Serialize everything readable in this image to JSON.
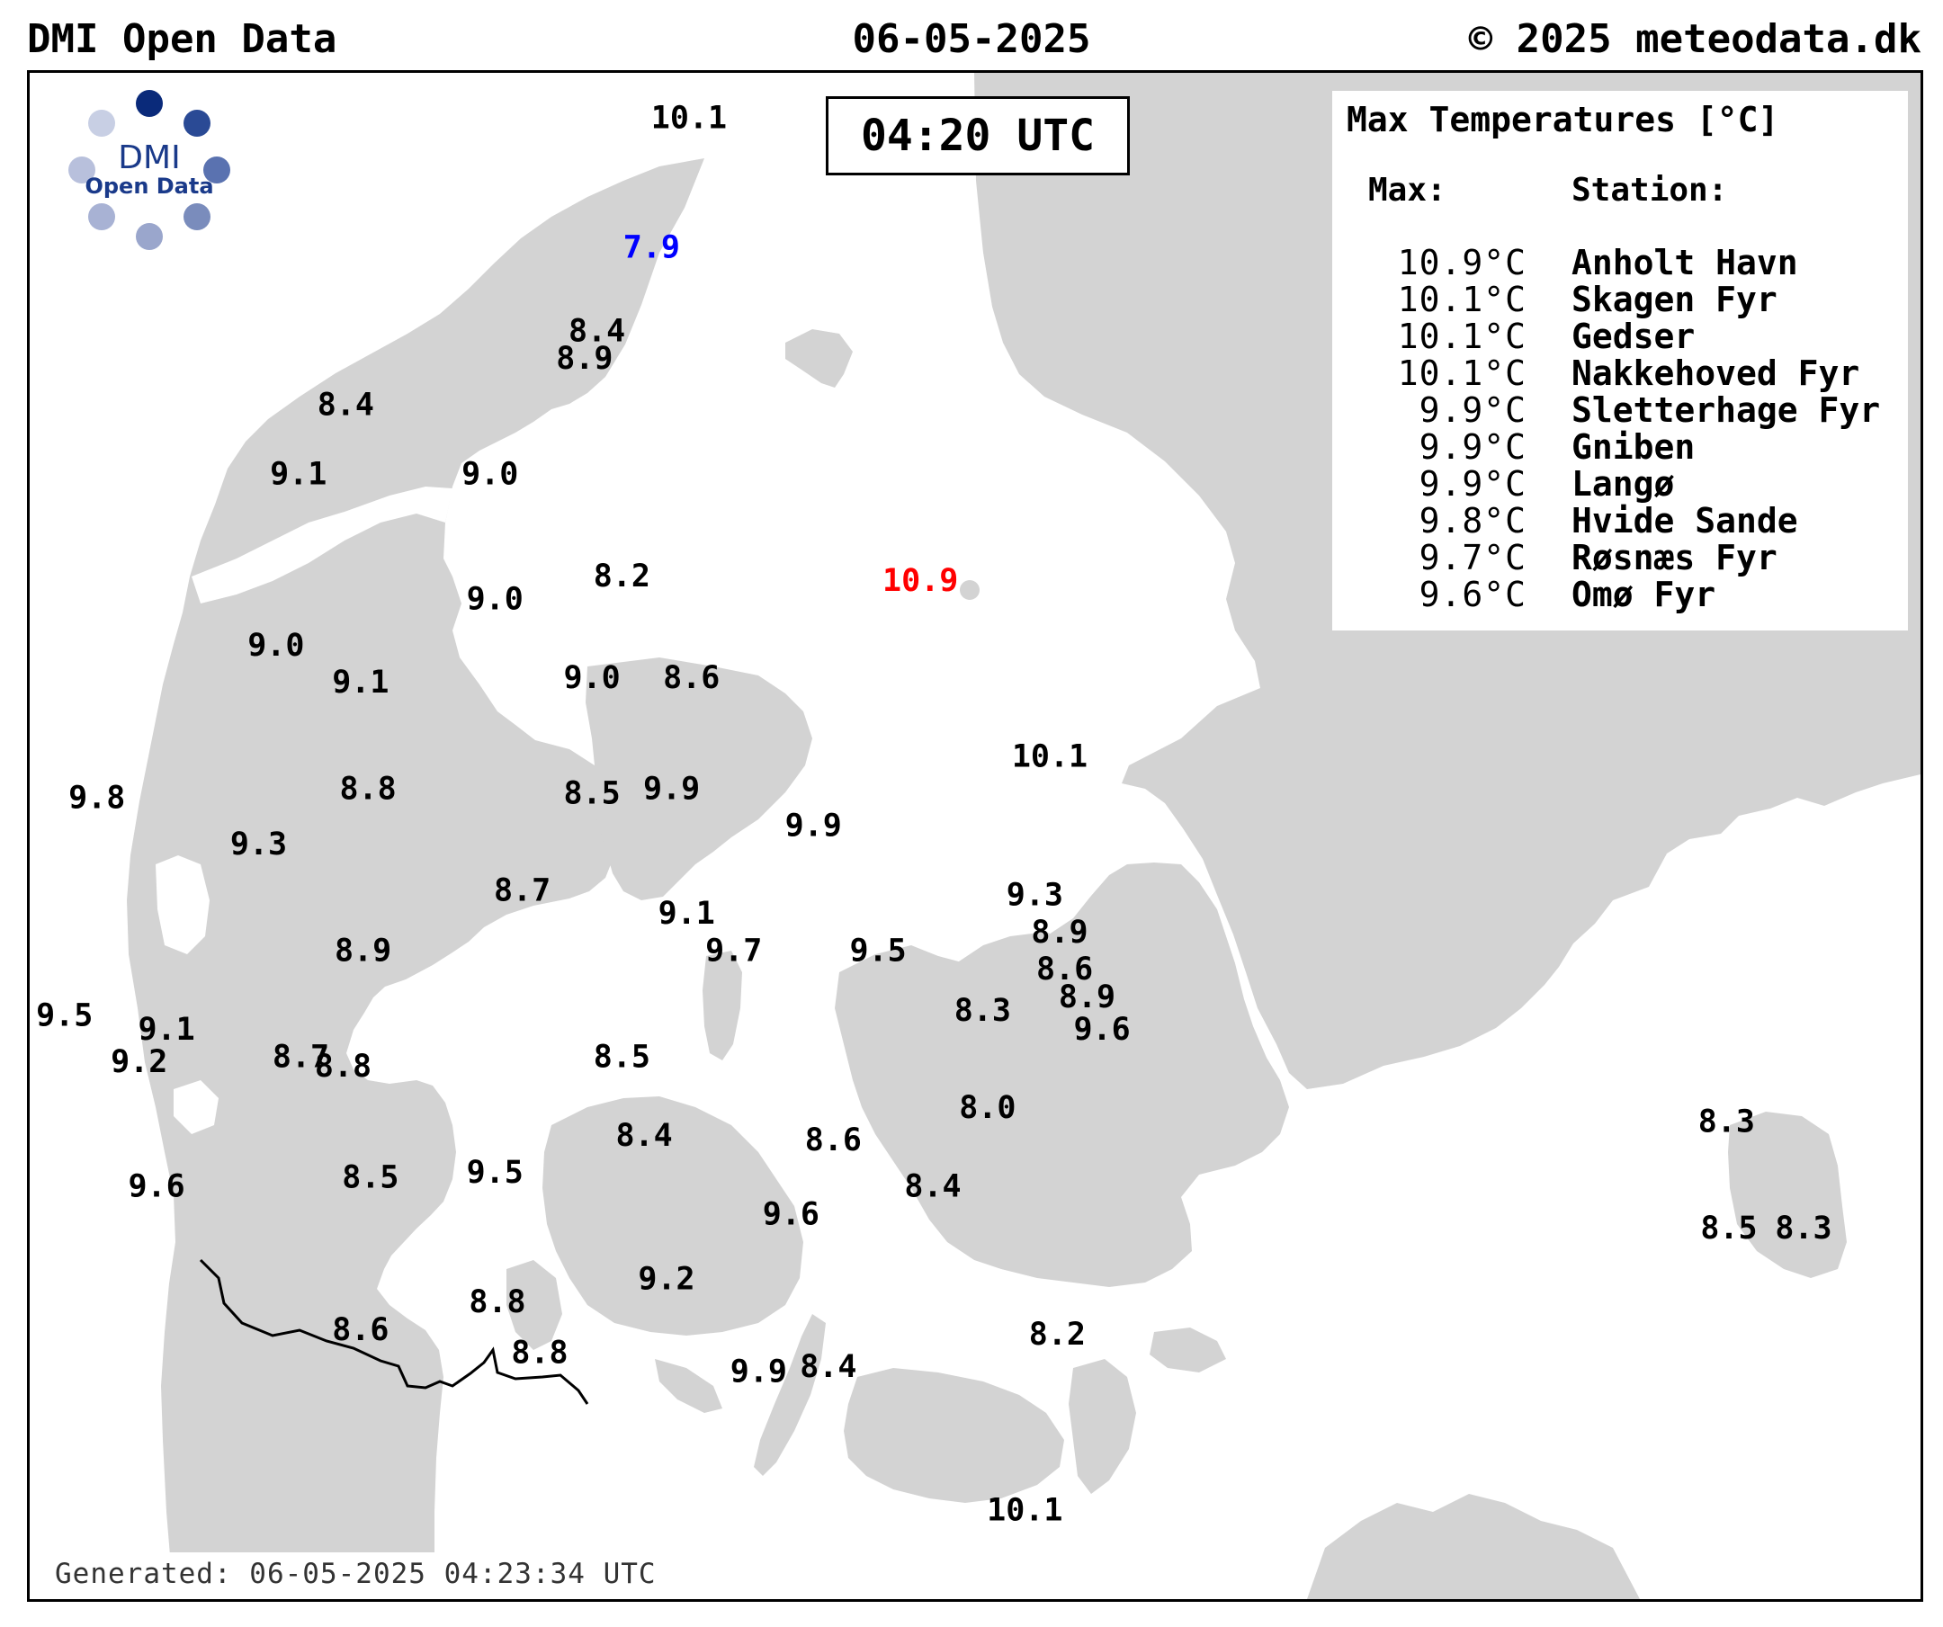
{
  "header": {
    "left": "DMI Open Data",
    "center": "06-05-2025",
    "right": "© 2025 meteodata.dk"
  },
  "time_label": "04:20 UTC",
  "logo": {
    "text_top": "DMI",
    "text_bottom": "Open Data",
    "color": "#1a3a8a"
  },
  "legend": {
    "title": "Max Temperatures [°C]",
    "col_max": "Max:",
    "col_station": "Station:",
    "rows": [
      {
        "max": "10.9°C",
        "station": "Anholt Havn"
      },
      {
        "max": "10.1°C",
        "station": "Skagen Fyr"
      },
      {
        "max": "10.1°C",
        "station": "Gedser"
      },
      {
        "max": "10.1°C",
        "station": "Nakkehoved Fyr"
      },
      {
        "max": "9.9°C",
        "station": "Sletterhage Fyr"
      },
      {
        "max": "9.9°C",
        "station": "Gniben"
      },
      {
        "max": "9.9°C",
        "station": "Langø"
      },
      {
        "max": "9.8°C",
        "station": "Hvide Sande"
      },
      {
        "max": "9.7°C",
        "station": "Røsnæs Fyr"
      },
      {
        "max": "9.6°C",
        "station": "Omø Fyr"
      }
    ]
  },
  "generated": "Generated: 06-05-2025 04:23:34 UTC",
  "colors": {
    "land": "#d3d3d3",
    "sea": "#ffffff",
    "normal": "#000000",
    "max_highlight": "#ff0000",
    "min_highlight": "#0000ff"
  },
  "station_values": [
    {
      "v": "10.1",
      "lon": 10.6,
      "lat": 57.73,
      "c": "normal"
    },
    {
      "v": "7.9",
      "lon": 10.45,
      "lat": 57.45,
      "c": "min"
    },
    {
      "v": "8.4",
      "lon": 10.23,
      "lat": 57.27,
      "c": "normal"
    },
    {
      "v": "8.9",
      "lon": 10.18,
      "lat": 57.21,
      "c": "normal"
    },
    {
      "v": "8.4",
      "lon": 9.22,
      "lat": 57.11,
      "c": "normal"
    },
    {
      "v": "9.1",
      "lon": 9.03,
      "lat": 56.96,
      "c": "normal"
    },
    {
      "v": "9.0",
      "lon": 9.8,
      "lat": 56.96,
      "c": "normal"
    },
    {
      "v": "10.9",
      "lon": 11.53,
      "lat": 56.73,
      "c": "max"
    },
    {
      "v": "8.2",
      "lon": 10.33,
      "lat": 56.74,
      "c": "normal"
    },
    {
      "v": "9.0",
      "lon": 9.82,
      "lat": 56.69,
      "c": "normal"
    },
    {
      "v": "9.0",
      "lon": 8.94,
      "lat": 56.59,
      "c": "normal"
    },
    {
      "v": "9.1",
      "lon": 9.28,
      "lat": 56.51,
      "c": "normal"
    },
    {
      "v": "9.0",
      "lon": 10.21,
      "lat": 56.52,
      "c": "normal"
    },
    {
      "v": "8.6",
      "lon": 10.61,
      "lat": 56.52,
      "c": "normal"
    },
    {
      "v": "10.1",
      "lon": 12.05,
      "lat": 56.35,
      "c": "normal"
    },
    {
      "v": "9.8",
      "lon": 8.22,
      "lat": 56.26,
      "c": "normal"
    },
    {
      "v": "8.8",
      "lon": 9.31,
      "lat": 56.28,
      "c": "normal"
    },
    {
      "v": "8.5",
      "lon": 10.21,
      "lat": 56.27,
      "c": "normal"
    },
    {
      "v": "9.9",
      "lon": 10.53,
      "lat": 56.28,
      "c": "normal"
    },
    {
      "v": "9.9",
      "lon": 11.1,
      "lat": 56.2,
      "c": "normal"
    },
    {
      "v": "9.3",
      "lon": 8.87,
      "lat": 56.16,
      "c": "normal"
    },
    {
      "v": "9.3",
      "lon": 11.99,
      "lat": 56.05,
      "c": "normal"
    },
    {
      "v": "8.7",
      "lon": 9.93,
      "lat": 56.06,
      "c": "normal"
    },
    {
      "v": "9.1",
      "lon": 10.59,
      "lat": 56.01,
      "c": "normal"
    },
    {
      "v": "8.9",
      "lon": 12.09,
      "lat": 55.97,
      "c": "normal"
    },
    {
      "v": "9.7",
      "lon": 10.78,
      "lat": 55.93,
      "c": "normal"
    },
    {
      "v": "9.5",
      "lon": 11.36,
      "lat": 55.93,
      "c": "normal"
    },
    {
      "v": "8.9",
      "lon": 9.29,
      "lat": 55.93,
      "c": "normal"
    },
    {
      "v": "8.6",
      "lon": 12.11,
      "lat": 55.89,
      "c": "normal"
    },
    {
      "v": "8.9",
      "lon": 12.2,
      "lat": 55.83,
      "c": "normal"
    },
    {
      "v": "8.3",
      "lon": 11.78,
      "lat": 55.8,
      "c": "normal"
    },
    {
      "v": "9.6",
      "lon": 12.26,
      "lat": 55.76,
      "c": "normal"
    },
    {
      "v": "9.5",
      "lon": 8.09,
      "lat": 55.79,
      "c": "normal"
    },
    {
      "v": "9.1",
      "lon": 8.5,
      "lat": 55.76,
      "c": "normal"
    },
    {
      "v": "9.2",
      "lon": 8.39,
      "lat": 55.69,
      "c": "normal"
    },
    {
      "v": "8.7",
      "lon": 9.04,
      "lat": 55.7,
      "c": "normal"
    },
    {
      "v": "8.8",
      "lon": 9.21,
      "lat": 55.68,
      "c": "normal"
    },
    {
      "v": "8.5",
      "lon": 10.33,
      "lat": 55.7,
      "c": "normal"
    },
    {
      "v": "8.0",
      "lon": 11.8,
      "lat": 55.59,
      "c": "normal"
    },
    {
      "v": "8.3",
      "lon": 14.77,
      "lat": 55.56,
      "c": "normal"
    },
    {
      "v": "8.4",
      "lon": 10.42,
      "lat": 55.53,
      "c": "normal"
    },
    {
      "v": "8.6",
      "lon": 11.18,
      "lat": 55.52,
      "c": "normal"
    },
    {
      "v": "9.5",
      "lon": 9.82,
      "lat": 55.45,
      "c": "normal"
    },
    {
      "v": "8.5",
      "lon": 9.32,
      "lat": 55.44,
      "c": "normal"
    },
    {
      "v": "9.6",
      "lon": 8.46,
      "lat": 55.42,
      "c": "normal"
    },
    {
      "v": "8.4",
      "lon": 11.58,
      "lat": 55.42,
      "c": "normal"
    },
    {
      "v": "9.6",
      "lon": 11.01,
      "lat": 55.36,
      "c": "normal"
    },
    {
      "v": "8.5",
      "lon": 14.78,
      "lat": 55.33,
      "c": "normal"
    },
    {
      "v": "8.3",
      "lon": 15.08,
      "lat": 55.33,
      "c": "normal"
    },
    {
      "v": "9.2",
      "lon": 10.51,
      "lat": 55.22,
      "c": "normal"
    },
    {
      "v": "8.8",
      "lon": 9.83,
      "lat": 55.17,
      "c": "normal"
    },
    {
      "v": "8.6",
      "lon": 9.28,
      "lat": 55.11,
      "c": "normal"
    },
    {
      "v": "8.2",
      "lon": 12.08,
      "lat": 55.1,
      "c": "normal"
    },
    {
      "v": "8.8",
      "lon": 10.0,
      "lat": 55.06,
      "c": "normal"
    },
    {
      "v": "9.9",
      "lon": 10.88,
      "lat": 55.02,
      "c": "normal"
    },
    {
      "v": "8.4",
      "lon": 11.16,
      "lat": 55.03,
      "c": "normal"
    },
    {
      "v": "10.1",
      "lon": 11.95,
      "lat": 54.72,
      "c": "normal"
    }
  ]
}
